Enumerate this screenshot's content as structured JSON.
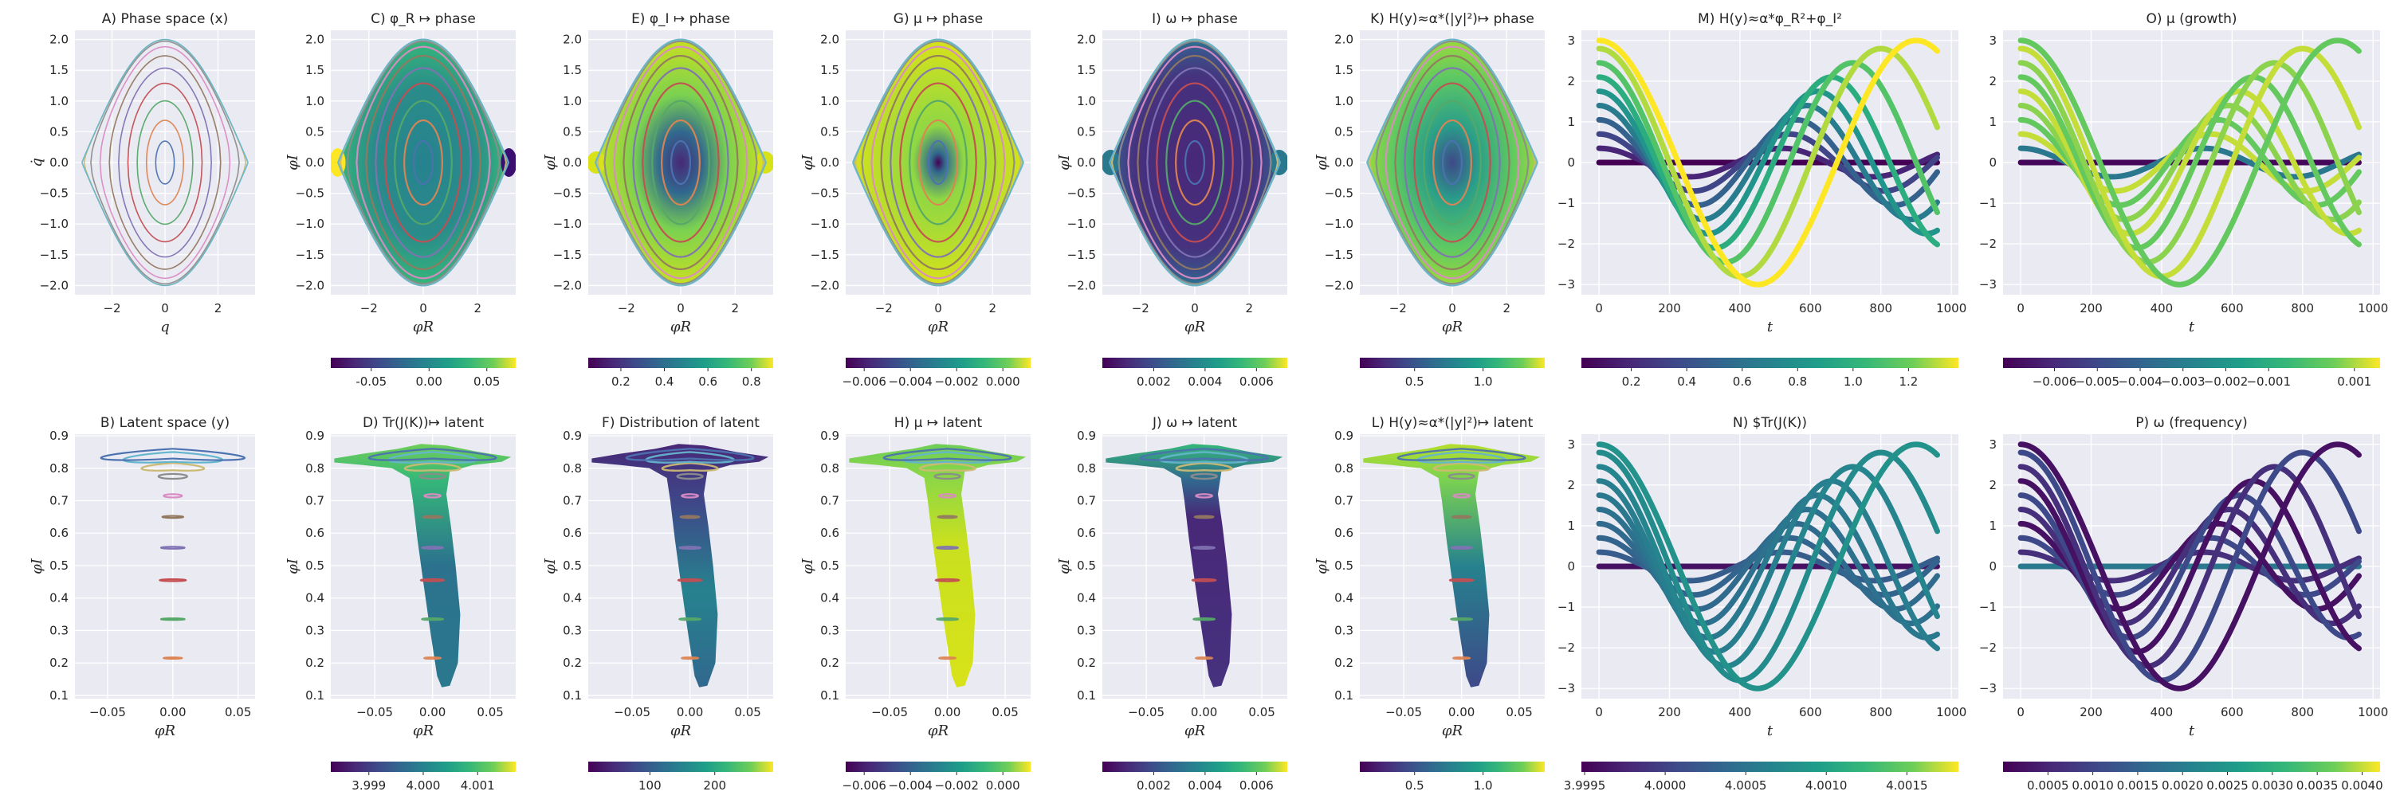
{
  "palette": {
    "axes_bg": "#eaeaf2",
    "grid": "#ffffff",
    "orbit_colors": [
      "#4c72b0",
      "#dd8452",
      "#55a868",
      "#c44e52",
      "#8172b3",
      "#937860",
      "#da8bc3",
      "#8c8c8c",
      "#ccb974",
      "#64b5cd"
    ],
    "colormap": "viridis"
  },
  "chart_data": [
    {
      "id": "A",
      "type": "scatter",
      "title": "A) Phase space (x)",
      "xlabel": "q",
      "ylabel": "q̇",
      "xlim": [
        -3.4,
        3.4
      ],
      "ylim": [
        -2.15,
        2.15
      ],
      "xticks": [
        -2,
        0,
        2
      ],
      "yticks": [
        -2.0,
        -1.5,
        -1.0,
        -0.5,
        0.0,
        0.5,
        1.0,
        1.5,
        2.0
      ],
      "orbits": [
        {
          "amp": 0.35
        },
        {
          "amp": 0.7
        },
        {
          "amp": 1.05
        },
        {
          "amp": 1.4
        },
        {
          "amp": 1.75
        },
        {
          "amp": 2.1
        },
        {
          "amp": 2.45
        },
        {
          "amp": 2.8
        },
        {
          "amp": 3.05
        },
        {
          "amp": 3.3
        }
      ]
    },
    {
      "id": "C",
      "type": "scatter",
      "title": "C) φ_R ↦ phase",
      "xlabel": "φR",
      "ylabel": "φI",
      "xlim": [
        -3.4,
        3.4
      ],
      "ylim": [
        -2.15,
        2.15
      ],
      "xticks": [
        -2,
        0,
        2
      ],
      "yticks": [
        -2.0,
        -1.5,
        -1.0,
        -0.5,
        0.0,
        0.5,
        1.0,
        1.5,
        2.0
      ],
      "colorbar": {
        "range": [
          -0.085,
          0.075
        ],
        "ticks": [
          "-0.05",
          "0.00",
          "0.05"
        ],
        "values": [
          -0.05,
          0.0,
          0.05
        ]
      }
    },
    {
      "id": "E",
      "type": "scatter",
      "title": "E) φ_I ↦ phase",
      "xlabel": "φR",
      "ylabel": "φI",
      "xlim": [
        -3.4,
        3.4
      ],
      "ylim": [
        -2.15,
        2.15
      ],
      "xticks": [
        -2,
        0,
        2
      ],
      "yticks": [
        -2.0,
        -1.5,
        -1.0,
        -0.5,
        0.0,
        0.5,
        1.0,
        1.5,
        2.0
      ],
      "colorbar": {
        "range": [
          0.05,
          0.9
        ],
        "ticks": [
          "0.2",
          "0.4",
          "0.6",
          "0.8"
        ],
        "values": [
          0.2,
          0.4,
          0.6,
          0.8
        ]
      }
    },
    {
      "id": "G",
      "type": "scatter",
      "title": "G) μ ↦ phase",
      "xlabel": "φR",
      "ylabel": "φI",
      "xlim": [
        -3.4,
        3.4
      ],
      "ylim": [
        -2.15,
        2.15
      ],
      "xticks": [
        -2,
        0,
        2
      ],
      "yticks": [
        -2.0,
        -1.5,
        -1.0,
        -0.5,
        0.0,
        0.5,
        1.0,
        1.5,
        2.0
      ],
      "colorbar": {
        "range": [
          -0.0068,
          0.0012
        ],
        "ticks": [
          "−0.006",
          "−0.004",
          "−0.002",
          "0.000"
        ],
        "values": [
          -0.006,
          -0.004,
          -0.002,
          0.0
        ]
      }
    },
    {
      "id": "I",
      "type": "scatter",
      "title": "I) ω ↦ phase",
      "xlabel": "φR",
      "ylabel": "φI",
      "xlim": [
        -3.4,
        3.4
      ],
      "ylim": [
        -2.15,
        2.15
      ],
      "xticks": [
        -2,
        0,
        2
      ],
      "yticks": [
        -2.0,
        -1.5,
        -1.0,
        -0.5,
        0.0,
        0.5,
        1.0,
        1.5,
        2.0
      ],
      "colorbar": {
        "range": [
          0.0,
          0.0072
        ],
        "ticks": [
          "0.002",
          "0.004",
          "0.006"
        ],
        "values": [
          0.002,
          0.004,
          0.006
        ]
      }
    },
    {
      "id": "K",
      "type": "scatter",
      "title": "K) H(y)≈α*(|y|²)↦ phase",
      "xlabel": "φR",
      "ylabel": "φI",
      "xlim": [
        -3.4,
        3.4
      ],
      "ylim": [
        -2.15,
        2.15
      ],
      "xticks": [
        -2,
        0,
        2
      ],
      "yticks": [
        -2.0,
        -1.5,
        -1.0,
        -0.5,
        0.0,
        0.5,
        1.0,
        1.5,
        2.0
      ],
      "colorbar": {
        "range": [
          0.1,
          1.45
        ],
        "ticks": [
          "0.5",
          "1.0"
        ],
        "values": [
          0.5,
          1.0
        ]
      }
    },
    {
      "id": "M",
      "type": "scatter",
      "title": "M) H(y)≈α*φ_R²+φ_I²",
      "xlabel": "t",
      "ylabel": "",
      "xlim": [
        -50,
        1020
      ],
      "ylim": [
        -3.25,
        3.25
      ],
      "xticks": [
        0,
        200,
        400,
        600,
        800,
        1000
      ],
      "yticks": [
        -3,
        -2,
        -1,
        0,
        1,
        2,
        3
      ],
      "colorbar": {
        "range": [
          0.02,
          1.38
        ],
        "ticks": [
          "0.2",
          "0.4",
          "0.6",
          "0.8",
          "1.0",
          "1.2"
        ],
        "values": [
          0.2,
          0.4,
          0.6,
          0.8,
          1.0,
          1.2
        ]
      }
    },
    {
      "id": "O",
      "type": "scatter",
      "title": "O) μ (growth)",
      "xlabel": "t",
      "ylabel": "",
      "xlim": [
        -50,
        1020
      ],
      "ylim": [
        -3.25,
        3.25
      ],
      "xticks": [
        0,
        200,
        400,
        600,
        800,
        1000
      ],
      "yticks": [
        -3,
        -2,
        -1,
        0,
        1,
        2,
        3
      ],
      "colorbar": {
        "range": [
          -0.0072,
          0.0016
        ],
        "ticks": [
          "−0.006",
          "−0.005",
          "−0.004",
          "−0.003",
          "−0.002",
          "−0.001",
          "0.001"
        ],
        "values": [
          -0.006,
          -0.005,
          -0.004,
          -0.003,
          -0.002,
          -0.001,
          0.001
        ]
      }
    },
    {
      "id": "B",
      "type": "scatter",
      "title": "B) Latent space (y)",
      "xlabel": "φR",
      "ylabel": "φI",
      "xlim": [
        -0.075,
        0.063
      ],
      "ylim": [
        0.09,
        0.905
      ],
      "xticks": [
        -0.05,
        0.0,
        0.05
      ],
      "xticklabels": [
        "−0.05",
        "0.00",
        "0.05"
      ],
      "yticks": [
        0.1,
        0.2,
        0.3,
        0.4,
        0.5,
        0.6,
        0.7,
        0.8,
        0.9
      ]
    },
    {
      "id": "D",
      "type": "scatter",
      "title": "D) Tr(J(K))↦ latent",
      "xlabel": "φR",
      "ylabel": "φI",
      "xlim": [
        -0.088,
        0.072
      ],
      "ylim": [
        0.09,
        0.905
      ],
      "xticks": [
        -0.05,
        0.0,
        0.05
      ],
      "xticklabels": [
        "−0.05",
        "0.00",
        "0.05"
      ],
      "yticks": [
        0.1,
        0.2,
        0.3,
        0.4,
        0.5,
        0.6,
        0.7,
        0.8,
        0.9
      ],
      "colorbar": {
        "range": [
          3.9983,
          4.0017
        ],
        "ticks": [
          "3.999",
          "4.000",
          "4.001"
        ],
        "values": [
          3.999,
          4.0,
          4.001
        ]
      }
    },
    {
      "id": "F",
      "type": "scatter",
      "title": "F) Distribution of latent",
      "xlabel": "φR",
      "ylabel": "φI",
      "xlim": [
        -0.088,
        0.072
      ],
      "ylim": [
        0.09,
        0.905
      ],
      "xticks": [
        -0.05,
        0.0,
        0.05
      ],
      "xticklabels": [
        "−0.05",
        "0.00",
        "0.05"
      ],
      "yticks": [
        0.1,
        0.2,
        0.3,
        0.4,
        0.5,
        0.6,
        0.7,
        0.8,
        0.9
      ],
      "colorbar": {
        "range": [
          5,
          290
        ],
        "ticks": [
          "100",
          "200"
        ],
        "values": [
          100,
          200
        ]
      }
    },
    {
      "id": "H",
      "type": "scatter",
      "title": "H) μ ↦ latent",
      "xlabel": "φR",
      "ylabel": "φI",
      "xlim": [
        -0.088,
        0.072
      ],
      "ylim": [
        0.09,
        0.905
      ],
      "xticks": [
        -0.05,
        0.0,
        0.05
      ],
      "xticklabels": [
        "−0.05",
        "0.00",
        "0.05"
      ],
      "yticks": [
        0.1,
        0.2,
        0.3,
        0.4,
        0.5,
        0.6,
        0.7,
        0.8,
        0.9
      ],
      "colorbar": {
        "range": [
          -0.0068,
          0.0012
        ],
        "ticks": [
          "−0.006",
          "−0.004",
          "−0.002",
          "0.000"
        ],
        "values": [
          -0.006,
          -0.004,
          -0.002,
          0.0
        ]
      }
    },
    {
      "id": "J",
      "type": "scatter",
      "title": "J) ω ↦ latent",
      "xlabel": "φR",
      "ylabel": "φI",
      "xlim": [
        -0.088,
        0.072
      ],
      "ylim": [
        0.09,
        0.905
      ],
      "xticks": [
        -0.05,
        0.0,
        0.05
      ],
      "xticklabels": [
        "−0.05",
        "0.00",
        "0.05"
      ],
      "yticks": [
        0.1,
        0.2,
        0.3,
        0.4,
        0.5,
        0.6,
        0.7,
        0.8,
        0.9
      ],
      "colorbar": {
        "range": [
          0.0,
          0.0072
        ],
        "ticks": [
          "0.002",
          "0.004",
          "0.006"
        ],
        "values": [
          0.002,
          0.004,
          0.006
        ]
      }
    },
    {
      "id": "L",
      "type": "scatter",
      "title": "L) H(y)≈α*(|y|²)↦ latent",
      "xlabel": "φR",
      "ylabel": "φI",
      "xlim": [
        -0.088,
        0.072
      ],
      "ylim": [
        0.09,
        0.905
      ],
      "xticks": [
        -0.05,
        0.0,
        0.05
      ],
      "xticklabels": [
        "−0.05",
        "0.00",
        "0.05"
      ],
      "yticks": [
        0.1,
        0.2,
        0.3,
        0.4,
        0.5,
        0.6,
        0.7,
        0.8,
        0.9
      ],
      "colorbar": {
        "range": [
          0.1,
          1.45
        ],
        "ticks": [
          "0.5",
          "1.0"
        ],
        "values": [
          0.5,
          1.0
        ]
      }
    },
    {
      "id": "N",
      "type": "scatter",
      "title": "N) $Tr(J(K))",
      "xlabel": "t",
      "ylabel": "",
      "xlim": [
        -50,
        1020
      ],
      "ylim": [
        -3.25,
        3.25
      ],
      "xticks": [
        0,
        200,
        400,
        600,
        800,
        1000
      ],
      "yticks": [
        -3,
        -2,
        -1,
        0,
        1,
        2,
        3
      ],
      "colorbar": {
        "range": [
          3.99948,
          4.00182
        ],
        "ticks": [
          "3.9995",
          "4.0000",
          "4.0005",
          "4.0010",
          "4.0015"
        ],
        "values": [
          3.9995,
          4.0,
          4.0005,
          4.001,
          4.0015
        ]
      }
    },
    {
      "id": "P",
      "type": "scatter",
      "title": "P) ω (frequency)",
      "xlabel": "t",
      "ylabel": "",
      "xlim": [
        -50,
        1020
      ],
      "ylim": [
        -3.25,
        3.25
      ],
      "xticks": [
        0,
        200,
        400,
        600,
        800,
        1000
      ],
      "yticks": [
        -3,
        -2,
        -1,
        0,
        1,
        2,
        3
      ],
      "colorbar": {
        "range": [
          0.0,
          0.0042
        ],
        "ticks": [
          "0.0005",
          "0.0010",
          "0.0015",
          "0.0020",
          "0.0025",
          "0.0030",
          "0.0035",
          "0.0040"
        ],
        "values": [
          0.0005,
          0.001,
          0.0015,
          0.002,
          0.0025,
          0.003,
          0.0035,
          0.004
        ]
      }
    }
  ]
}
